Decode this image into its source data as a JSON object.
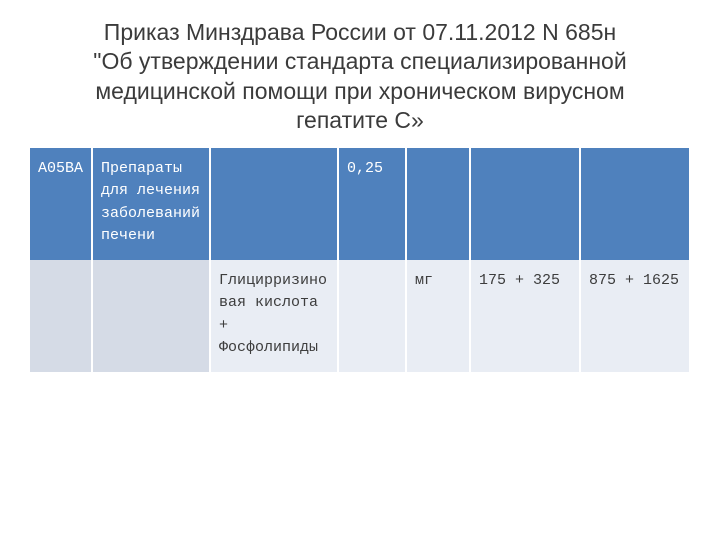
{
  "title_lines": {
    "l1": "Приказ Минздрава России от 07.11.2012 N 685н",
    "l2": "\"Об утверждении стандарта специализированной медицинской помощи при хроническом вирусном гепатите C»"
  },
  "table": {
    "header_bg": "#4f81bd",
    "header_fg": "#ffffff",
    "body_bg": "#e9edf4",
    "body_shadow_bg": "#d5dbe6",
    "body_fg": "#3d3d3d",
    "row_header": {
      "c1": "A05BA",
      "c2": "Препараты для лечения заболеваний печени",
      "c3": "",
      "c4": "0,25",
      "c5": "",
      "c6": "",
      "c7": ""
    },
    "row_body": {
      "c1": "",
      "c2": "",
      "c3": "Глицирризиновая кислота + Фосфолипиды",
      "c4": "",
      "c5": "мг",
      "c6": "175 + 325",
      "c7": "875 + 1625"
    }
  }
}
